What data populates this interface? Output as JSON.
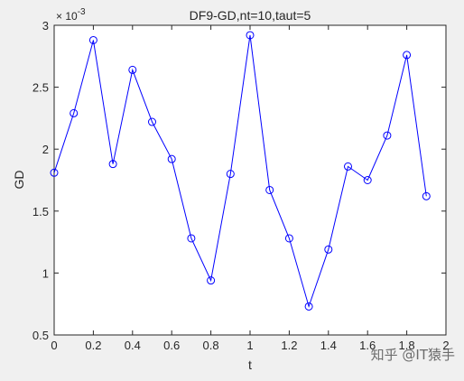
{
  "chart_data": {
    "type": "line",
    "title": "DF9-GD,nt=10,taut=5",
    "xlabel": "t",
    "ylabel": "GD",
    "y_exponent": "× 10^{-3}",
    "xlim": [
      0,
      2
    ],
    "ylim": [
      0.5,
      3
    ],
    "xticks": [
      "0",
      "0.2",
      "0.4",
      "0.6",
      "0.8",
      "1",
      "1.2",
      "1.4",
      "1.6",
      "1.8",
      "2"
    ],
    "yticks": [
      "0.5",
      "1",
      "1.5",
      "2",
      "2.5",
      "3"
    ],
    "grid": false,
    "series": [
      {
        "color": "#0000ff",
        "marker": "circle",
        "x": [
          0,
          0.1,
          0.2,
          0.3,
          0.4,
          0.5,
          0.6,
          0.7,
          0.8,
          0.9,
          1.0,
          1.1,
          1.2,
          1.3,
          1.4,
          1.5,
          1.6,
          1.7,
          1.8,
          1.9
        ],
        "y": [
          1.81,
          2.29,
          2.88,
          1.88,
          2.64,
          2.22,
          1.92,
          1.28,
          0.94,
          1.8,
          2.92,
          1.67,
          1.28,
          0.73,
          1.19,
          1.86,
          1.75,
          2.11,
          2.76,
          1.62
        ]
      }
    ]
  },
  "watermark": "知乎 @IT猿手"
}
